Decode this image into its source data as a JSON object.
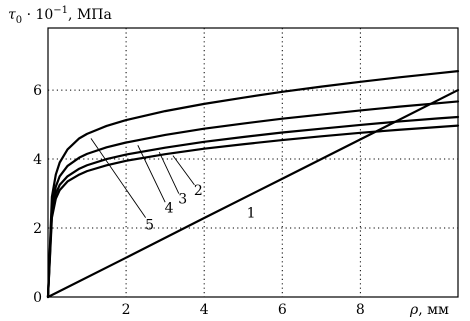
{
  "chart_data": {
    "type": "line",
    "title": "",
    "ylabel": "τ0 · 10^−1, МПа",
    "ylabel_parts": {
      "symbol": "τ",
      "subscript": "0",
      "middle": " · 10",
      "exponent": "−1",
      "unit": ", МПа"
    },
    "xlabel": "ρ, мм",
    "xlabel_parts": {
      "symbol": "ρ",
      "unit": ", мм"
    },
    "xlim": [
      0,
      10.5
    ],
    "ylim": [
      0,
      7.8
    ],
    "x_ticks": [
      2,
      4,
      6,
      8
    ],
    "x_tick_labels": [
      "2",
      "4",
      "6",
      "8"
    ],
    "y_ticks": [
      0,
      2,
      4,
      6
    ],
    "y_tick_labels": [
      "0",
      "2",
      "4",
      "6"
    ],
    "grid": true,
    "series": [
      {
        "name": "1",
        "x": [
          0,
          2,
          4,
          6,
          8,
          10.5
        ],
        "y": [
          0,
          1.14,
          2.29,
          3.43,
          4.57,
          6.0
        ]
      },
      {
        "name": "2",
        "x": [
          0,
          0.1,
          0.2,
          0.3,
          0.5,
          0.8,
          1.0,
          1.5,
          2,
          3,
          4,
          5,
          6,
          7,
          8,
          9,
          10,
          10.5
        ],
        "y": [
          0,
          2.3,
          2.85,
          3.1,
          3.35,
          3.55,
          3.65,
          3.82,
          3.95,
          4.14,
          4.3,
          4.43,
          4.55,
          4.66,
          4.76,
          4.85,
          4.93,
          4.97
        ]
      },
      {
        "name": "3",
        "x": [
          0,
          0.1,
          0.2,
          0.3,
          0.5,
          0.8,
          1.0,
          1.5,
          2,
          3,
          4,
          5,
          6,
          7,
          8,
          9,
          10,
          10.5
        ],
        "y": [
          0,
          2.45,
          3.0,
          3.25,
          3.5,
          3.72,
          3.82,
          4.0,
          4.13,
          4.33,
          4.5,
          4.64,
          4.77,
          4.88,
          4.99,
          5.09,
          5.18,
          5.22
        ]
      },
      {
        "name": "4",
        "x": [
          0,
          0.1,
          0.2,
          0.3,
          0.5,
          0.8,
          1.0,
          1.5,
          2,
          3,
          4,
          5,
          6,
          7,
          8,
          9,
          10,
          10.5
        ],
        "y": [
          0,
          2.65,
          3.2,
          3.5,
          3.8,
          4.04,
          4.15,
          4.34,
          4.48,
          4.7,
          4.88,
          5.03,
          5.17,
          5.29,
          5.41,
          5.52,
          5.62,
          5.67
        ]
      },
      {
        "name": "5",
        "x": [
          0,
          0.1,
          0.2,
          0.3,
          0.5,
          0.8,
          1.0,
          1.5,
          2,
          3,
          4,
          5,
          6,
          7,
          8,
          9,
          10,
          10.5
        ],
        "y": [
          0,
          2.9,
          3.55,
          3.9,
          4.28,
          4.6,
          4.73,
          4.96,
          5.13,
          5.39,
          5.6,
          5.78,
          5.95,
          6.1,
          6.24,
          6.37,
          6.49,
          6.55
        ]
      }
    ],
    "curve_labels": [
      {
        "text": "1",
        "at": [
          5.2,
          2.45
        ]
      },
      {
        "text": "2",
        "at": [
          3.85,
          3.1
        ]
      },
      {
        "text": "3",
        "at": [
          3.45,
          2.85
        ]
      },
      {
        "text": "4",
        "at": [
          3.1,
          2.6
        ]
      },
      {
        "text": "5",
        "at": [
          2.6,
          2.1
        ]
      }
    ],
    "leaders": [
      {
        "label": "2",
        "from": [
          3.75,
          3.25
        ],
        "to": [
          3.2,
          4.1
        ]
      },
      {
        "label": "3",
        "from": [
          3.35,
          3.0
        ],
        "to": [
          2.85,
          4.2
        ]
      },
      {
        "label": "4",
        "from": [
          3.0,
          2.75
        ],
        "to": [
          2.3,
          4.4
        ]
      },
      {
        "label": "5",
        "from": [
          2.5,
          2.3
        ],
        "to": [
          1.1,
          4.6
        ]
      }
    ]
  }
}
